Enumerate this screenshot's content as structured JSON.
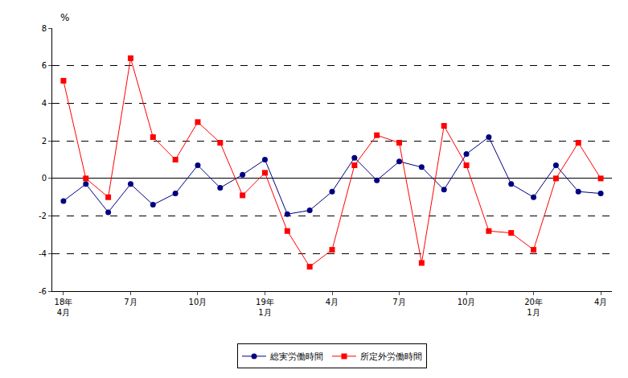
{
  "chart_data": {
    "type": "line",
    "y_label": "%",
    "categories": [
      "18年\n4月",
      null,
      null,
      "7月",
      null,
      null,
      "10月",
      null,
      null,
      "19年\n1月",
      null,
      null,
      "4月",
      null,
      null,
      "7月",
      null,
      null,
      "10月",
      null,
      null,
      "20年\n1月",
      null,
      null,
      "4月"
    ],
    "series": [
      {
        "name": "総実労働時間",
        "color": "#000080",
        "marker": "circle",
        "line_style": "solid",
        "values": [
          -1.2,
          -0.3,
          -1.8,
          -0.3,
          -1.4,
          -0.8,
          0.7,
          -0.5,
          0.2,
          1.0,
          -1.9,
          -1.7,
          -0.7,
          1.1,
          -0.1,
          0.9,
          0.6,
          -0.6,
          1.3,
          2.2,
          -0.3,
          -1.0,
          0.7,
          -0.7,
          -0.8
        ]
      },
      {
        "name": "所定外労働時間",
        "color": "#ff0000",
        "marker": "square",
        "line_style": "solid",
        "values": [
          5.2,
          0.0,
          -1.0,
          6.4,
          2.2,
          1.0,
          3.0,
          1.9,
          -0.9,
          0.3,
          -2.8,
          -4.7,
          -3.8,
          0.7,
          2.3,
          1.9,
          -4.5,
          2.8,
          0.7,
          -2.8,
          -2.9,
          -3.8,
          0.0,
          1.9,
          0.0
        ]
      }
    ],
    "ylim": [
      -6,
      8
    ],
    "yticks": [
      -6,
      -4,
      -2,
      0,
      2,
      4,
      6,
      8
    ],
    "grid": true,
    "legend": "bottom"
  }
}
